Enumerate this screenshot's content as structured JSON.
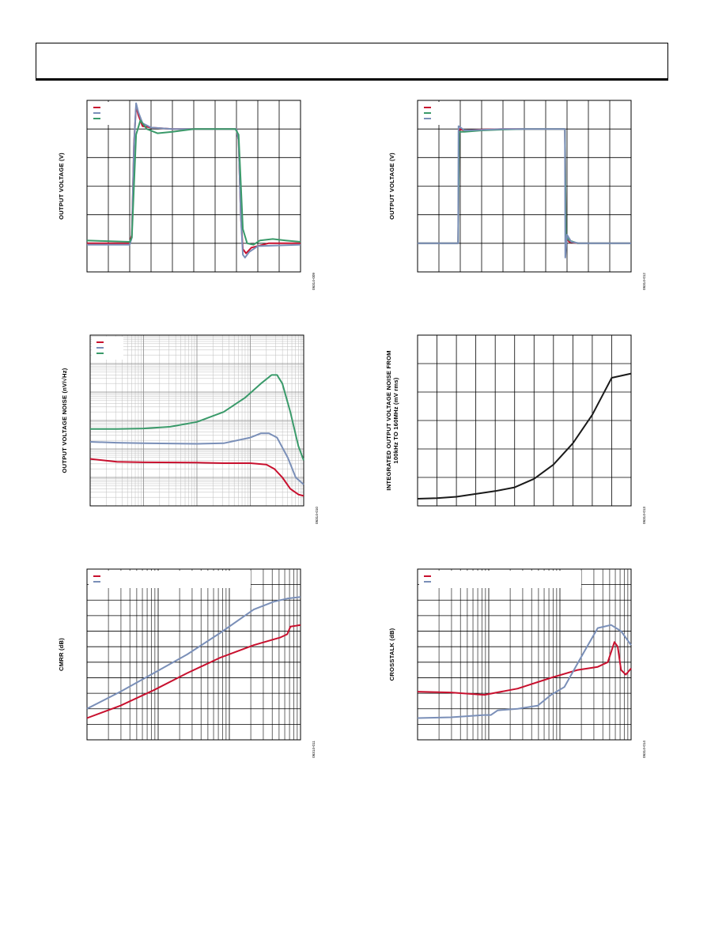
{
  "header": {
    "title": ""
  },
  "colors": {
    "red": "#c8102e",
    "blue": "#7a8fb8",
    "green": "#3a9a6a",
    "black": "#1a1a1a",
    "grid": "#000000",
    "minor_grid": "#bdbdbd"
  },
  "chart_data": [
    {
      "id": "fig-a",
      "type": "line",
      "scale": "linear",
      "ylabel": "OUTPUT VOLTAGE (V)",
      "code": "06314-009",
      "grid": true,
      "legend": "top-left",
      "xlim": [
        0,
        10
      ],
      "ylim": [
        0,
        6
      ],
      "series": [
        {
          "color": "red",
          "points": [
            [
              0,
              1.0
            ],
            [
              2.0,
              1.0
            ],
            [
              2.1,
              1.3
            ],
            [
              2.2,
              4.5
            ],
            [
              2.3,
              5.8
            ],
            [
              2.4,
              5.5
            ],
            [
              2.6,
              5.1
            ],
            [
              3.0,
              5.05
            ],
            [
              4.0,
              5.0
            ],
            [
              5.0,
              5.0
            ],
            [
              6.0,
              5.0
            ],
            [
              7.0,
              5.0
            ],
            [
              7.1,
              4.6
            ],
            [
              7.2,
              2.0
            ],
            [
              7.3,
              0.8
            ],
            [
              7.45,
              0.65
            ],
            [
              7.7,
              0.85
            ],
            [
              8.5,
              1.0
            ],
            [
              10,
              1.0
            ]
          ]
        },
        {
          "color": "blue",
          "points": [
            [
              0,
              0.95
            ],
            [
              2.0,
              0.95
            ],
            [
              2.1,
              1.2
            ],
            [
              2.2,
              4.4
            ],
            [
              2.3,
              5.9
            ],
            [
              2.4,
              5.6
            ],
            [
              2.6,
              5.2
            ],
            [
              3.0,
              5.05
            ],
            [
              4.0,
              5.0
            ],
            [
              5.0,
              5.0
            ],
            [
              6.0,
              5.0
            ],
            [
              7.0,
              5.0
            ],
            [
              7.1,
              4.6
            ],
            [
              7.2,
              2.0
            ],
            [
              7.3,
              0.6
            ],
            [
              7.4,
              0.5
            ],
            [
              7.6,
              0.7
            ],
            [
              8.0,
              0.9
            ],
            [
              10,
              0.95
            ]
          ]
        },
        {
          "color": "green",
          "points": [
            [
              0,
              1.1
            ],
            [
              0.7,
              1.08
            ],
            [
              2.0,
              1.05
            ],
            [
              2.1,
              1.2
            ],
            [
              2.3,
              4.8
            ],
            [
              2.5,
              5.3
            ],
            [
              2.8,
              5.0
            ],
            [
              3.3,
              4.85
            ],
            [
              4.0,
              4.9
            ],
            [
              5.0,
              5.0
            ],
            [
              6.0,
              5.0
            ],
            [
              6.95,
              5.0
            ],
            [
              7.1,
              4.8
            ],
            [
              7.3,
              1.5
            ],
            [
              7.5,
              1.0
            ],
            [
              7.8,
              0.95
            ],
            [
              8.1,
              1.1
            ],
            [
              8.7,
              1.15
            ],
            [
              9.3,
              1.1
            ],
            [
              10,
              1.05
            ]
          ]
        }
      ]
    },
    {
      "id": "fig-b",
      "type": "line",
      "scale": "linear",
      "ylabel": "OUTPUT VOLTAGE (V)",
      "code": "06314-012",
      "grid": true,
      "legend": "top-left",
      "xlim": [
        0,
        10
      ],
      "ylim": [
        0,
        6
      ],
      "series": [
        {
          "color": "red",
          "points": [
            [
              0,
              1.0
            ],
            [
              1.9,
              1.0
            ],
            [
              1.95,
              5.0
            ],
            [
              2.2,
              4.95
            ],
            [
              3.0,
              4.98
            ],
            [
              4.0,
              5.0
            ],
            [
              5.0,
              5.0
            ],
            [
              6.0,
              5.0
            ],
            [
              6.9,
              5.0
            ],
            [
              6.95,
              1.2
            ],
            [
              7.1,
              1.05
            ],
            [
              7.5,
              1.0
            ],
            [
              10,
              1.0
            ]
          ]
        },
        {
          "color": "green",
          "points": [
            [
              0,
              1.0
            ],
            [
              1.9,
              1.0
            ],
            [
              1.95,
              4.9
            ],
            [
              2.2,
              4.9
            ],
            [
              3.0,
              4.95
            ],
            [
              4.0,
              4.98
            ],
            [
              5.0,
              5.0
            ],
            [
              6.0,
              5.0
            ],
            [
              6.9,
              5.0
            ],
            [
              6.95,
              1.3
            ],
            [
              7.1,
              1.1
            ],
            [
              7.5,
              1.0
            ],
            [
              10,
              1.0
            ]
          ]
        },
        {
          "color": "blue",
          "points": [
            [
              0,
              1.0
            ],
            [
              1.9,
              1.0
            ],
            [
              1.92,
              5.1
            ],
            [
              2.2,
              4.95
            ],
            [
              3.0,
              4.97
            ],
            [
              4.0,
              5.0
            ],
            [
              5.0,
              5.0
            ],
            [
              6.0,
              5.0
            ],
            [
              6.9,
              5.0
            ],
            [
              6.92,
              0.5
            ],
            [
              7.0,
              1.3
            ],
            [
              7.2,
              1.05
            ],
            [
              7.6,
              1.0
            ],
            [
              10,
              1.0
            ]
          ]
        }
      ]
    },
    {
      "id": "fig-c",
      "type": "line",
      "scale": "loglin",
      "ylabel": "OUTPUT VOLTAGE NOISE (nV/√Hz)",
      "code": "06314-010",
      "grid": true,
      "legend": "top-left",
      "xlim": [
        0,
        4
      ],
      "ylim": [
        0,
        6
      ],
      "series": [
        {
          "color": "red",
          "points": [
            [
              0,
              1.65
            ],
            [
              0.5,
              1.55
            ],
            [
              1.0,
              1.53
            ],
            [
              2.0,
              1.52
            ],
            [
              2.5,
              1.5
            ],
            [
              3.0,
              1.5
            ],
            [
              3.3,
              1.45
            ],
            [
              3.45,
              1.3
            ],
            [
              3.6,
              1.0
            ],
            [
              3.75,
              0.6
            ],
            [
              3.9,
              0.4
            ],
            [
              4.0,
              0.35
            ]
          ]
        },
        {
          "color": "blue",
          "points": [
            [
              0,
              2.25
            ],
            [
              0.5,
              2.22
            ],
            [
              1.0,
              2.2
            ],
            [
              2.0,
              2.18
            ],
            [
              2.5,
              2.2
            ],
            [
              3.0,
              2.4
            ],
            [
              3.2,
              2.55
            ],
            [
              3.35,
              2.55
            ],
            [
              3.5,
              2.4
            ],
            [
              3.7,
              1.7
            ],
            [
              3.85,
              1.0
            ],
            [
              4.0,
              0.75
            ]
          ]
        },
        {
          "color": "green",
          "points": [
            [
              0,
              2.7
            ],
            [
              0.5,
              2.7
            ],
            [
              1.0,
              2.72
            ],
            [
              1.5,
              2.78
            ],
            [
              2.0,
              2.95
            ],
            [
              2.5,
              3.3
            ],
            [
              2.9,
              3.8
            ],
            [
              3.2,
              4.3
            ],
            [
              3.4,
              4.6
            ],
            [
              3.5,
              4.6
            ],
            [
              3.6,
              4.3
            ],
            [
              3.75,
              3.3
            ],
            [
              3.9,
              2.1
            ],
            [
              4.0,
              1.6
            ]
          ]
        }
      ]
    },
    {
      "id": "fig-d",
      "type": "line",
      "scale": "linear",
      "ylabel": "INTEGRATED OUTPUT VOLTAGE NOISE FROM",
      "ylabel2": "100kHz TO 160MHz (mV rms)",
      "code": "06314-013",
      "grid": true,
      "legend": "",
      "xlim": [
        0,
        11
      ],
      "ylim": [
        0,
        6
      ],
      "series": [
        {
          "color": "black",
          "points": [
            [
              0,
              0.25
            ],
            [
              1,
              0.27
            ],
            [
              2,
              0.32
            ],
            [
              3,
              0.42
            ],
            [
              4,
              0.52
            ],
            [
              5,
              0.65
            ],
            [
              6,
              0.95
            ],
            [
              7,
              1.45
            ],
            [
              8,
              2.2
            ],
            [
              9,
              3.2
            ],
            [
              10,
              4.5
            ],
            [
              11,
              4.65
            ]
          ]
        }
      ]
    },
    {
      "id": "fig-e",
      "type": "line",
      "scale": "log",
      "ylabel": "CMRR (dB)",
      "code": "06314-011",
      "grid": true,
      "legend": "top-left",
      "xlim": [
        0,
        3.2
      ],
      "ylim": [
        0,
        11
      ],
      "series": [
        {
          "color": "red",
          "points": [
            [
              0,
              1.4
            ],
            [
              0.5,
              2.2
            ],
            [
              1.0,
              3.2
            ],
            [
              1.5,
              4.3
            ],
            [
              2.0,
              5.3
            ],
            [
              2.5,
              6.1
            ],
            [
              2.9,
              6.6
            ],
            [
              3.0,
              6.8
            ],
            [
              3.05,
              7.3
            ],
            [
              3.2,
              7.4
            ]
          ]
        },
        {
          "color": "blue",
          "points": [
            [
              0,
              2.0
            ],
            [
              0.5,
              3.1
            ],
            [
              1.0,
              4.3
            ],
            [
              1.5,
              5.5
            ],
            [
              2.0,
              6.9
            ],
            [
              2.5,
              8.4
            ],
            [
              2.8,
              8.9
            ],
            [
              3.0,
              9.1
            ],
            [
              3.2,
              9.2
            ]
          ]
        }
      ]
    },
    {
      "id": "fig-f",
      "type": "line",
      "scale": "log",
      "ylabel": "CROSSTALK (dB)",
      "code": "06314-014",
      "grid": true,
      "legend": "top-left",
      "xlim": [
        0,
        3.2
      ],
      "ylim": [
        0,
        11
      ],
      "series": [
        {
          "color": "red",
          "points": [
            [
              0,
              3.1
            ],
            [
              0.5,
              3.05
            ],
            [
              1.0,
              2.9
            ],
            [
              1.5,
              3.3
            ],
            [
              2.0,
              4.0
            ],
            [
              2.4,
              4.5
            ],
            [
              2.7,
              4.7
            ],
            [
              2.85,
              5.0
            ],
            [
              2.95,
              6.3
            ],
            [
              3.0,
              6.0
            ],
            [
              3.05,
              4.5
            ],
            [
              3.12,
              4.2
            ],
            [
              3.2,
              4.6
            ]
          ]
        },
        {
          "color": "blue",
          "points": [
            [
              0,
              1.4
            ],
            [
              0.5,
              1.45
            ],
            [
              1.0,
              1.6
            ],
            [
              1.1,
              1.6
            ],
            [
              1.2,
              1.9
            ],
            [
              1.5,
              2.0
            ],
            [
              1.8,
              2.2
            ],
            [
              2.0,
              2.9
            ],
            [
              2.2,
              3.4
            ],
            [
              2.5,
              5.7
            ],
            [
              2.7,
              7.2
            ],
            [
              2.9,
              7.4
            ],
            [
              3.05,
              7.0
            ],
            [
              3.2,
              6.1
            ]
          ]
        }
      ]
    }
  ]
}
